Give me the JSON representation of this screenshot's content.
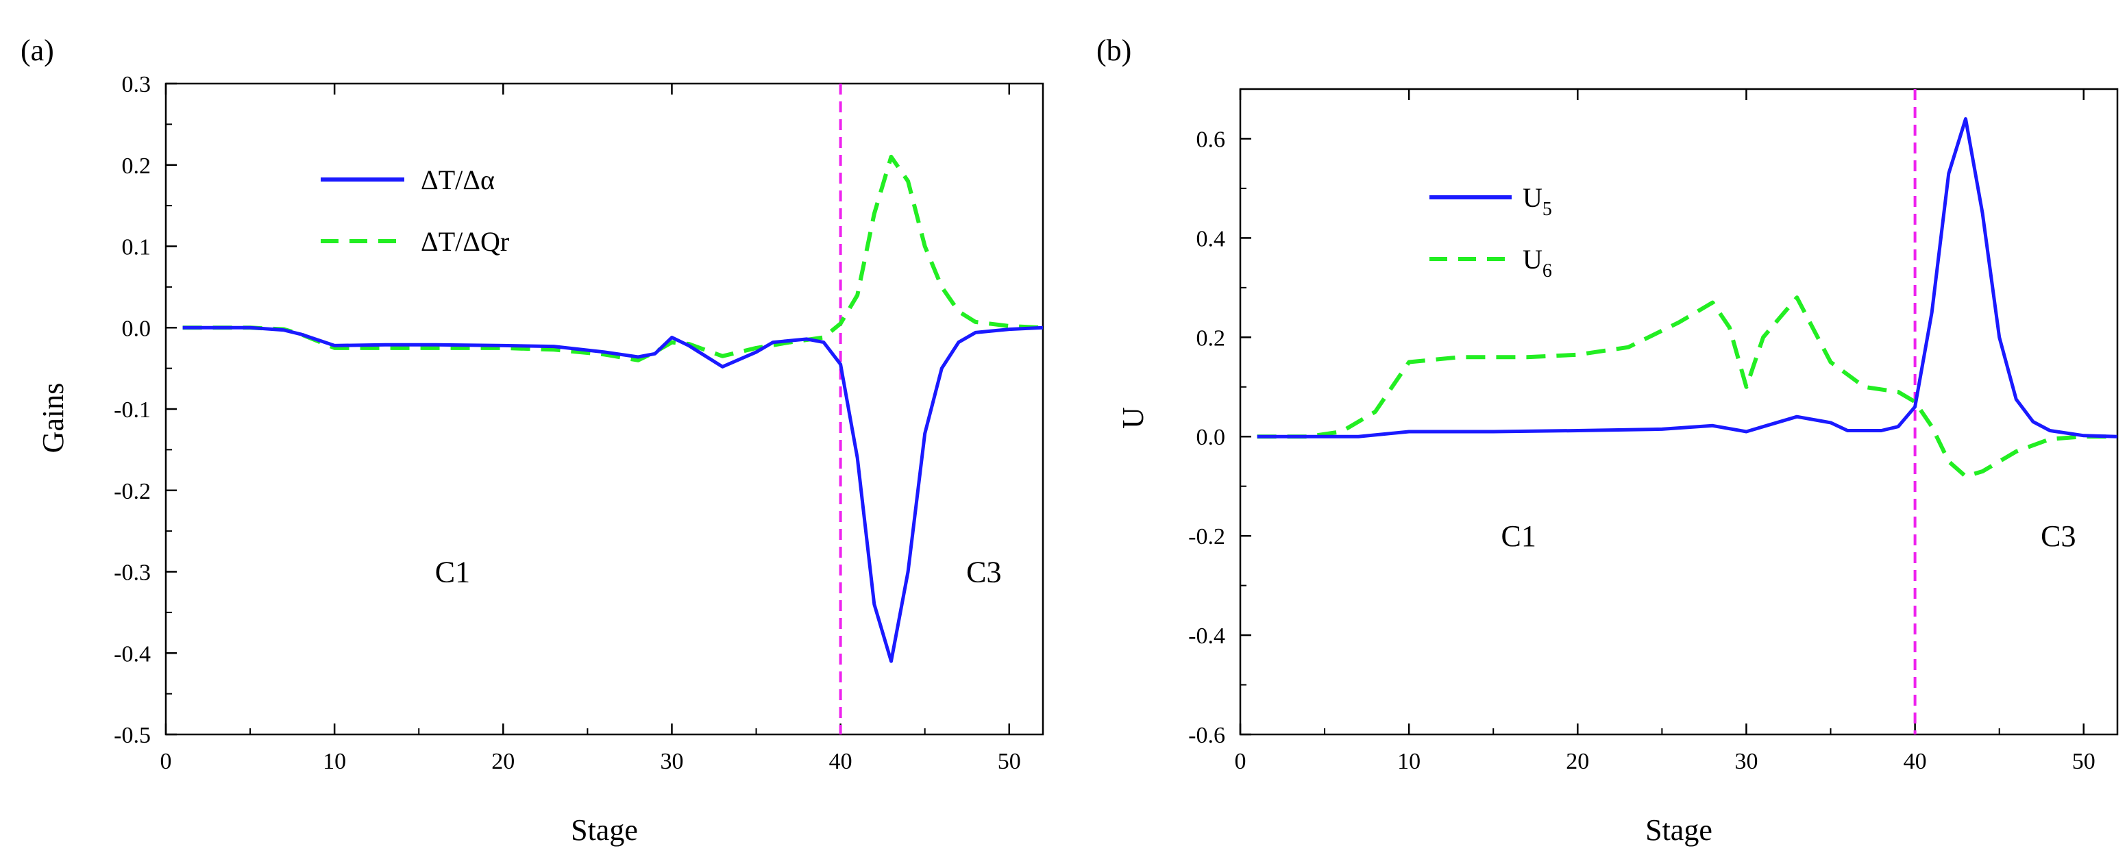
{
  "chart_data": [
    {
      "type": "line",
      "panel_label": "(a)",
      "xlabel": "Stage",
      "ylabel": "Gains",
      "xlim": [
        0,
        52
      ],
      "ylim": [
        -0.5,
        0.3
      ],
      "xticks": [
        0,
        10,
        20,
        30,
        40,
        50
      ],
      "yticks": [
        0.3,
        0.2,
        0.1,
        0.0,
        -0.1,
        -0.2,
        -0.3,
        -0.4,
        -0.5
      ],
      "ytick_labels": [
        "0.3",
        "0.2",
        "0.1",
        "0.0",
        "-0.1",
        "-0.2",
        "-0.3",
        "-0.4",
        "-0.5"
      ],
      "divider_x": 40,
      "regions": [
        {
          "label": "C1",
          "x": 17,
          "y": -0.3
        },
        {
          "label": "C3",
          "x": 48.5,
          "y": -0.3
        }
      ],
      "legend_position": "upper-left",
      "series": [
        {
          "name": "ΔT/Δα",
          "style": "solid",
          "color": "#1a1aff",
          "x": [
            1,
            5,
            7,
            8,
            10,
            13,
            16,
            20,
            23,
            26,
            28,
            29,
            30,
            31,
            33,
            35,
            36,
            38,
            39,
            40,
            41,
            42,
            43,
            44,
            45,
            46,
            47,
            48,
            50,
            52
          ],
          "y": [
            0,
            0,
            -0.003,
            -0.008,
            -0.022,
            -0.021,
            -0.021,
            -0.022,
            -0.023,
            -0.03,
            -0.036,
            -0.032,
            -0.012,
            -0.022,
            -0.048,
            -0.03,
            -0.018,
            -0.014,
            -0.018,
            -0.045,
            -0.16,
            -0.34,
            -0.41,
            -0.3,
            -0.13,
            -0.05,
            -0.018,
            -0.006,
            -0.002,
            0
          ]
        },
        {
          "name": "ΔT/ΔQr",
          "style": "dashed",
          "color": "#22ee22",
          "x": [
            1,
            5,
            7,
            8,
            10,
            13,
            16,
            20,
            23,
            26,
            28,
            29,
            30,
            31,
            33,
            35,
            37,
            39,
            40,
            41,
            42,
            43,
            44,
            45,
            46,
            47,
            48,
            50,
            52
          ],
          "y": [
            0,
            0,
            -0.002,
            -0.008,
            -0.025,
            -0.025,
            -0.025,
            -0.025,
            -0.027,
            -0.033,
            -0.04,
            -0.03,
            -0.018,
            -0.02,
            -0.035,
            -0.025,
            -0.018,
            -0.012,
            0.005,
            0.04,
            0.14,
            0.21,
            0.18,
            0.1,
            0.05,
            0.02,
            0.007,
            0.002,
            0
          ]
        }
      ]
    },
    {
      "type": "line",
      "panel_label": "(b)",
      "xlabel": "Stage",
      "ylabel": "U",
      "xlim": [
        0,
        52
      ],
      "ylim": [
        -0.6,
        0.7
      ],
      "xticks": [
        0,
        10,
        20,
        30,
        40,
        50
      ],
      "yticks": [
        0.6,
        0.4,
        0.2,
        0.0,
        -0.2,
        -0.4,
        -0.6
      ],
      "ytick_labels": [
        "0.6",
        "0.4",
        "0.2",
        "0.0",
        "-0.2",
        "-0.4",
        "-0.6"
      ],
      "divider_x": 40,
      "regions": [
        {
          "label": "C1",
          "x": 16.5,
          "y": -0.2
        },
        {
          "label": "C3",
          "x": 48.5,
          "y": -0.2
        }
      ],
      "legend_position": "upper-left",
      "series": [
        {
          "name": "U",
          "name_subscript": "5",
          "style": "solid",
          "color": "#1a1aff",
          "x": [
            1,
            4,
            7,
            10,
            15,
            20,
            25,
            28,
            30,
            31,
            33,
            35,
            36,
            38,
            39,
            40,
            41,
            42,
            43,
            44,
            45,
            46,
            47,
            48,
            50,
            52
          ],
          "y": [
            0,
            0,
            0,
            0.01,
            0.01,
            0.012,
            0.015,
            0.022,
            0.01,
            0.02,
            0.04,
            0.028,
            0.012,
            0.012,
            0.02,
            0.06,
            0.25,
            0.53,
            0.64,
            0.45,
            0.2,
            0.075,
            0.03,
            0.012,
            0.002,
            0
          ]
        },
        {
          "name": "U",
          "name_subscript": "6",
          "style": "dashed",
          "color": "#22ee22",
          "x": [
            1,
            4,
            6,
            8,
            10,
            13,
            17,
            20,
            23,
            26,
            28,
            29,
            30,
            31,
            33,
            35,
            37,
            39,
            40,
            41,
            42,
            43,
            44,
            45,
            46,
            48,
            50,
            52
          ],
          "y": [
            0,
            0,
            0.01,
            0.05,
            0.15,
            0.16,
            0.16,
            0.165,
            0.18,
            0.23,
            0.27,
            0.22,
            0.1,
            0.2,
            0.28,
            0.15,
            0.1,
            0.09,
            0.07,
            0.02,
            -0.05,
            -0.08,
            -0.07,
            -0.05,
            -0.03,
            -0.005,
            0,
            0
          ]
        }
      ]
    }
  ]
}
